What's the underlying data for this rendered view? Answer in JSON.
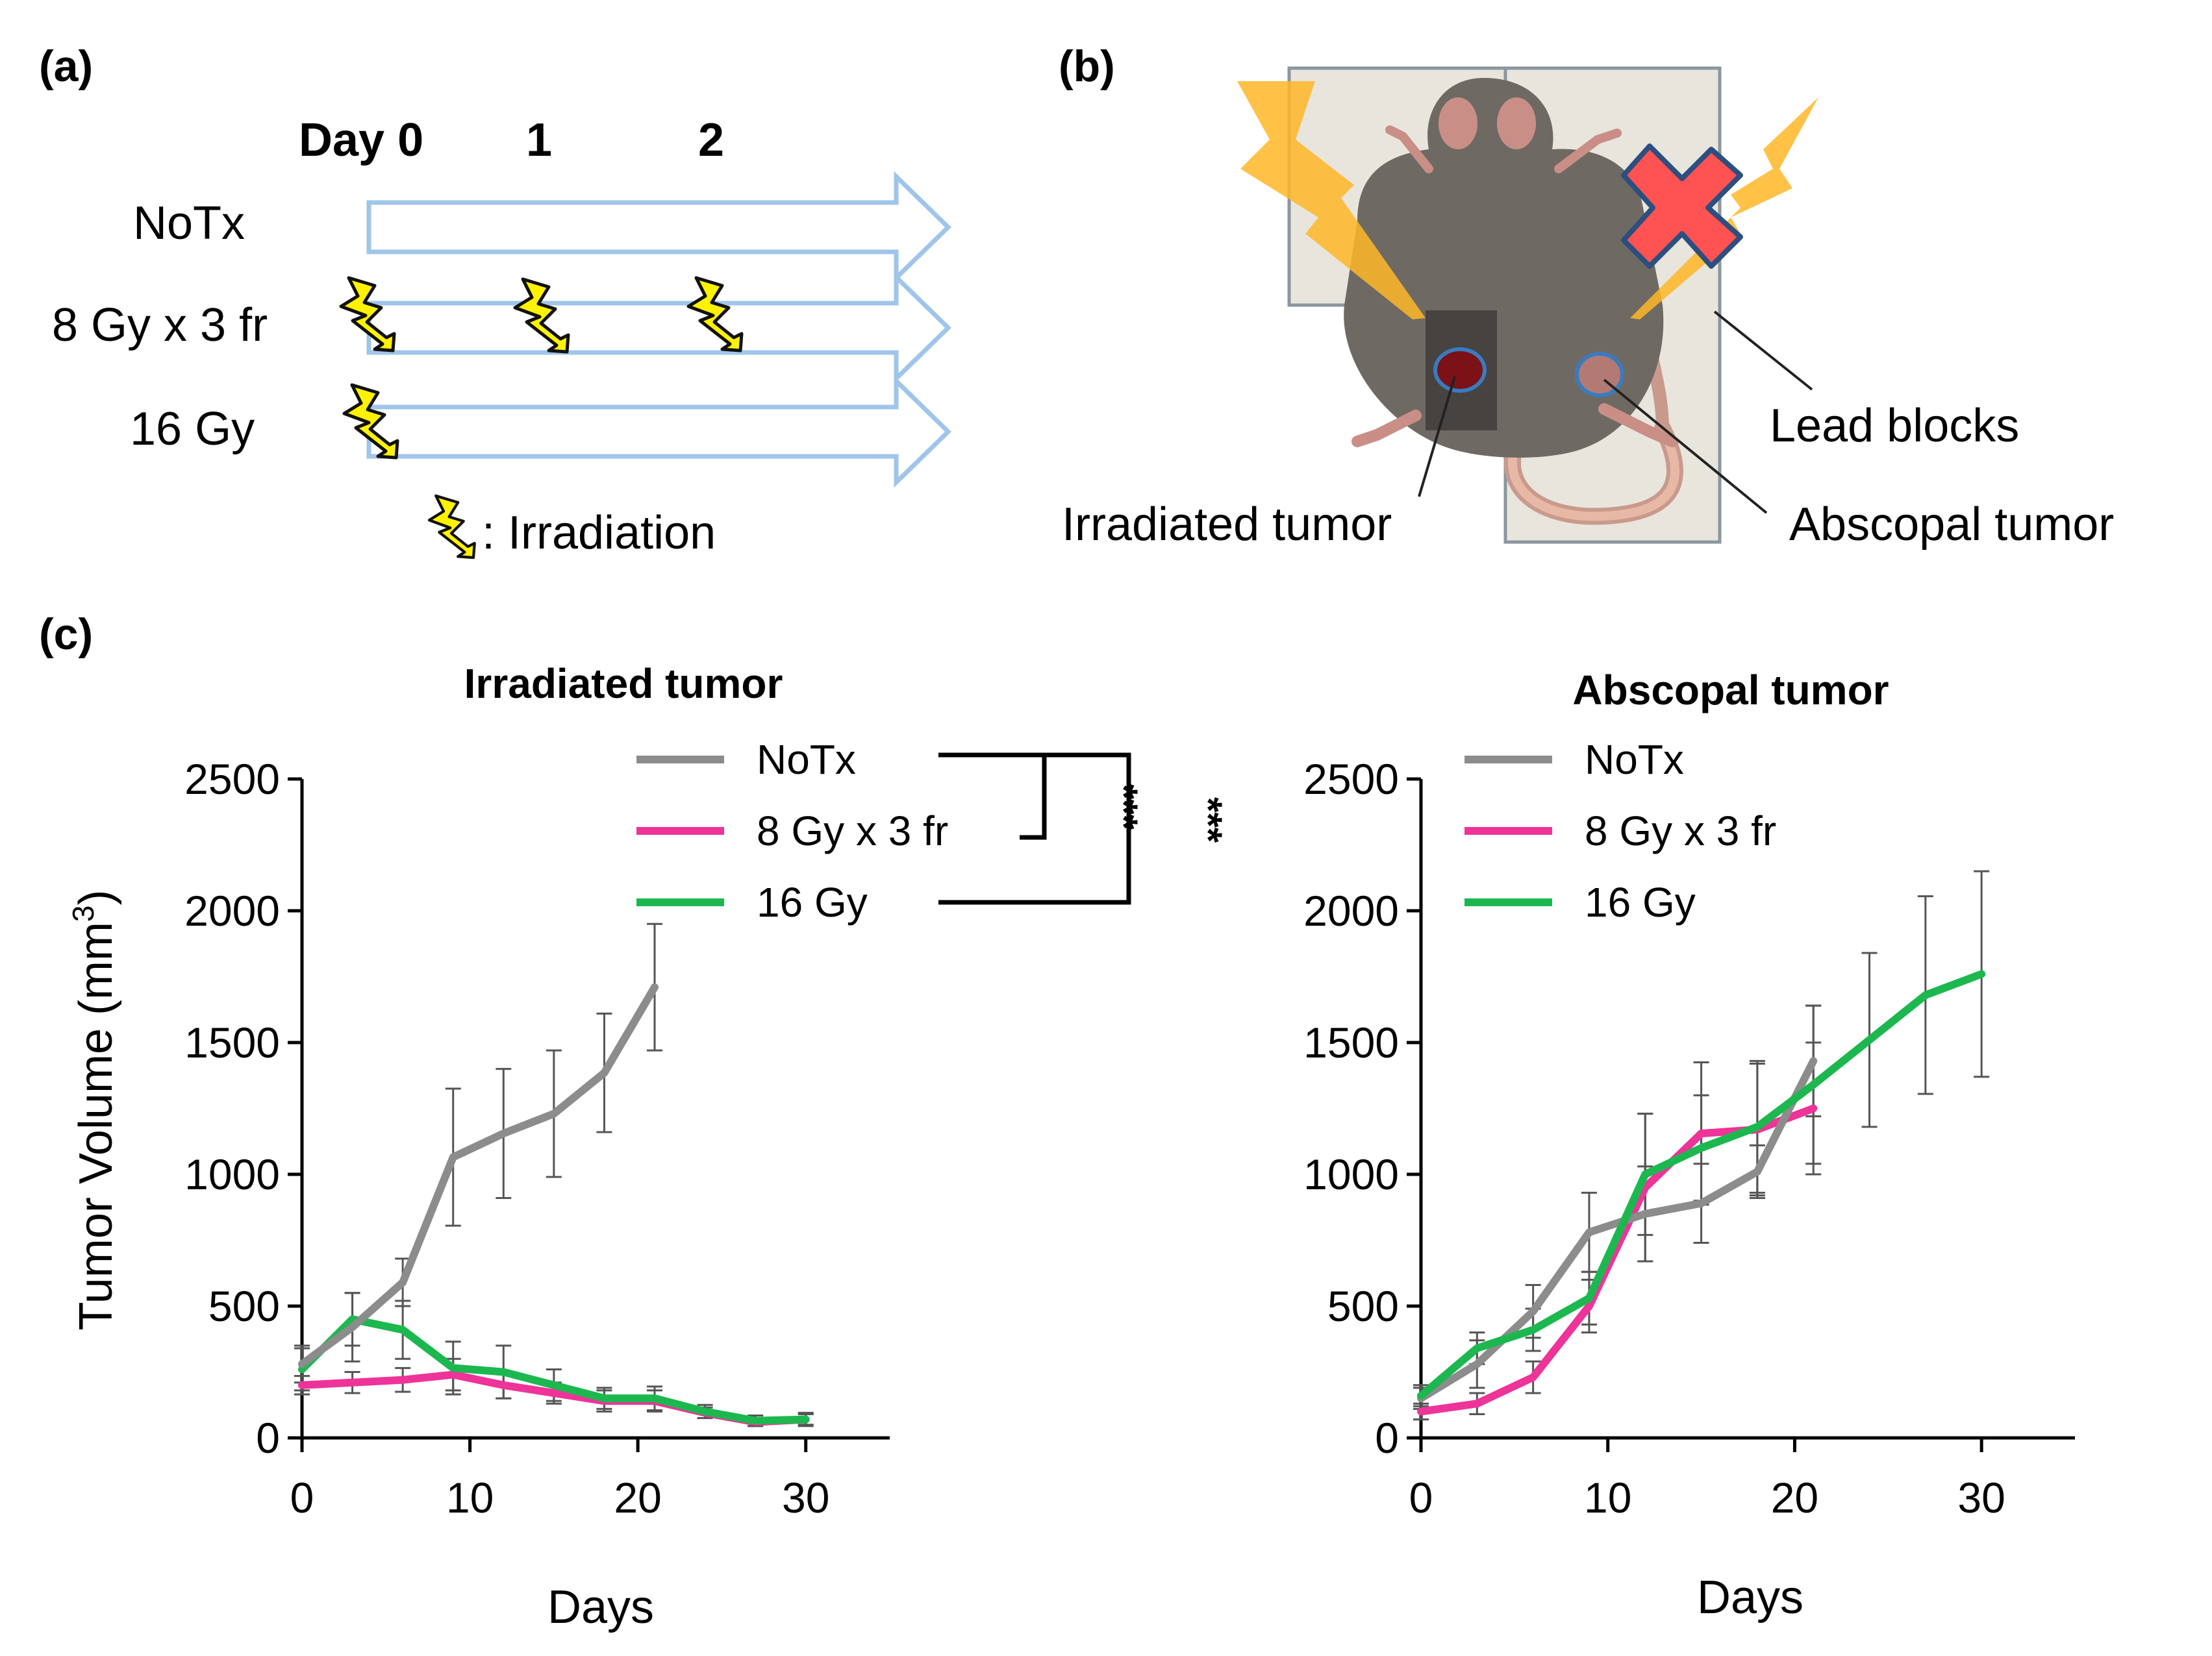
{
  "panels": {
    "a": {
      "label": "(a)",
      "day_header": "Day 0",
      "day_ticks": [
        "1",
        "2"
      ],
      "rows": [
        {
          "label": "NoTx",
          "bolts_at_days": []
        },
        {
          "label": "8 Gy x 3 fr",
          "bolts_at_days": [
            0,
            1,
            2
          ]
        },
        {
          "label": "16 Gy",
          "bolts_at_days": [
            0
          ]
        }
      ],
      "legend_text": ": Irradiation"
    },
    "b": {
      "label": "(b)",
      "lead_blocks": "Lead blocks",
      "irradiated_tumor": "Irradiated tumor",
      "abscopal_tumor": "Abscopal tumor"
    },
    "c": {
      "label": "(c)"
    }
  },
  "colors": {
    "notx": "#8c8c8c",
    "fr3": "#ee3399",
    "gy16": "#1cb84f",
    "arrow": "#9fc5ea",
    "bolt": "#fff200",
    "ray": "#ffb727",
    "cross": "#ff5252",
    "lead": "#e8e5dd",
    "mouse": "#6e6a63"
  },
  "significance": {
    "mark1": "***",
    "mark2": "***"
  },
  "chart_data": [
    {
      "type": "line",
      "title": "Irradiated tumor",
      "xlabel": "Days",
      "ylabel": "Tumor Volume  (mm",
      "ylabel_sup": "3",
      "ylabel_close": ")",
      "xlim": [
        0,
        35
      ],
      "ylim": [
        0,
        2500
      ],
      "xticks": [
        0,
        10,
        20,
        30
      ],
      "yticks": [
        0,
        500,
        1000,
        1500,
        2000,
        2500
      ],
      "legend": "top-right",
      "series": [
        {
          "name": "NoTx",
          "color_key": "notx",
          "x": [
            0,
            3,
            6,
            9,
            12,
            15,
            18,
            21
          ],
          "y": [
            280,
            420,
            590,
            1065,
            1155,
            1230,
            1385,
            1710
          ],
          "err": [
            70,
            130,
            90,
            260,
            245,
            240,
            225,
            240
          ]
        },
        {
          "name": "8 Gy x 3 fr",
          "color_key": "fr3",
          "x": [
            0,
            3,
            6,
            9,
            12,
            15,
            18,
            21,
            24,
            27,
            30
          ],
          "y": [
            200,
            210,
            220,
            240,
            200,
            170,
            140,
            140,
            95,
            60,
            70
          ],
          "err": [
            35,
            40,
            45,
            60,
            50,
            40,
            40,
            40,
            20,
            15,
            20
          ]
        },
        {
          "name": "16 Gy",
          "color_key": "gy16",
          "x": [
            0,
            3,
            6,
            9,
            12,
            15,
            18,
            21,
            24,
            27,
            30
          ],
          "y": [
            260,
            450,
            410,
            265,
            250,
            200,
            150,
            150,
            100,
            65,
            70
          ],
          "err": [
            80,
            100,
            110,
            100,
            100,
            60,
            40,
            45,
            25,
            20,
            25
          ]
        }
      ]
    },
    {
      "type": "line",
      "title": "Abscopal tumor",
      "xlabel": "Days",
      "xlim": [
        0,
        35
      ],
      "ylim": [
        0,
        2500
      ],
      "xticks": [
        0,
        10,
        20,
        30
      ],
      "yticks": [
        0,
        500,
        1000,
        1500,
        2000,
        2500
      ],
      "legend": "top-left",
      "series": [
        {
          "name": "NoTx",
          "color_key": "notx",
          "x": [
            0,
            3,
            6,
            9,
            12,
            15,
            18,
            21
          ],
          "y": [
            150,
            280,
            480,
            780,
            850,
            890,
            1010,
            1430
          ],
          "err": [
            40,
            90,
            100,
            150,
            180,
            150,
            100,
            210
          ]
        },
        {
          "name": "8 Gy x 3 fr",
          "color_key": "fr3",
          "x": [
            0,
            3,
            6,
            9,
            12,
            15,
            18,
            21
          ],
          "y": [
            100,
            130,
            230,
            500,
            950,
            1155,
            1170,
            1250
          ],
          "err": [
            30,
            40,
            60,
            100,
            280,
            270,
            250,
            250
          ]
        },
        {
          "name": "16 Gy",
          "color_key": "gy16",
          "x": [
            0,
            3,
            6,
            9,
            12,
            15,
            18,
            21,
            24,
            27,
            30
          ],
          "y": [
            160,
            340,
            410,
            530,
            1000,
            1100,
            1180,
            1340,
            1510,
            1680,
            1760
          ],
          "err": [
            40,
            60,
            80,
            100,
            230,
            200,
            250,
            300,
            330,
            375,
            390
          ]
        }
      ]
    }
  ]
}
